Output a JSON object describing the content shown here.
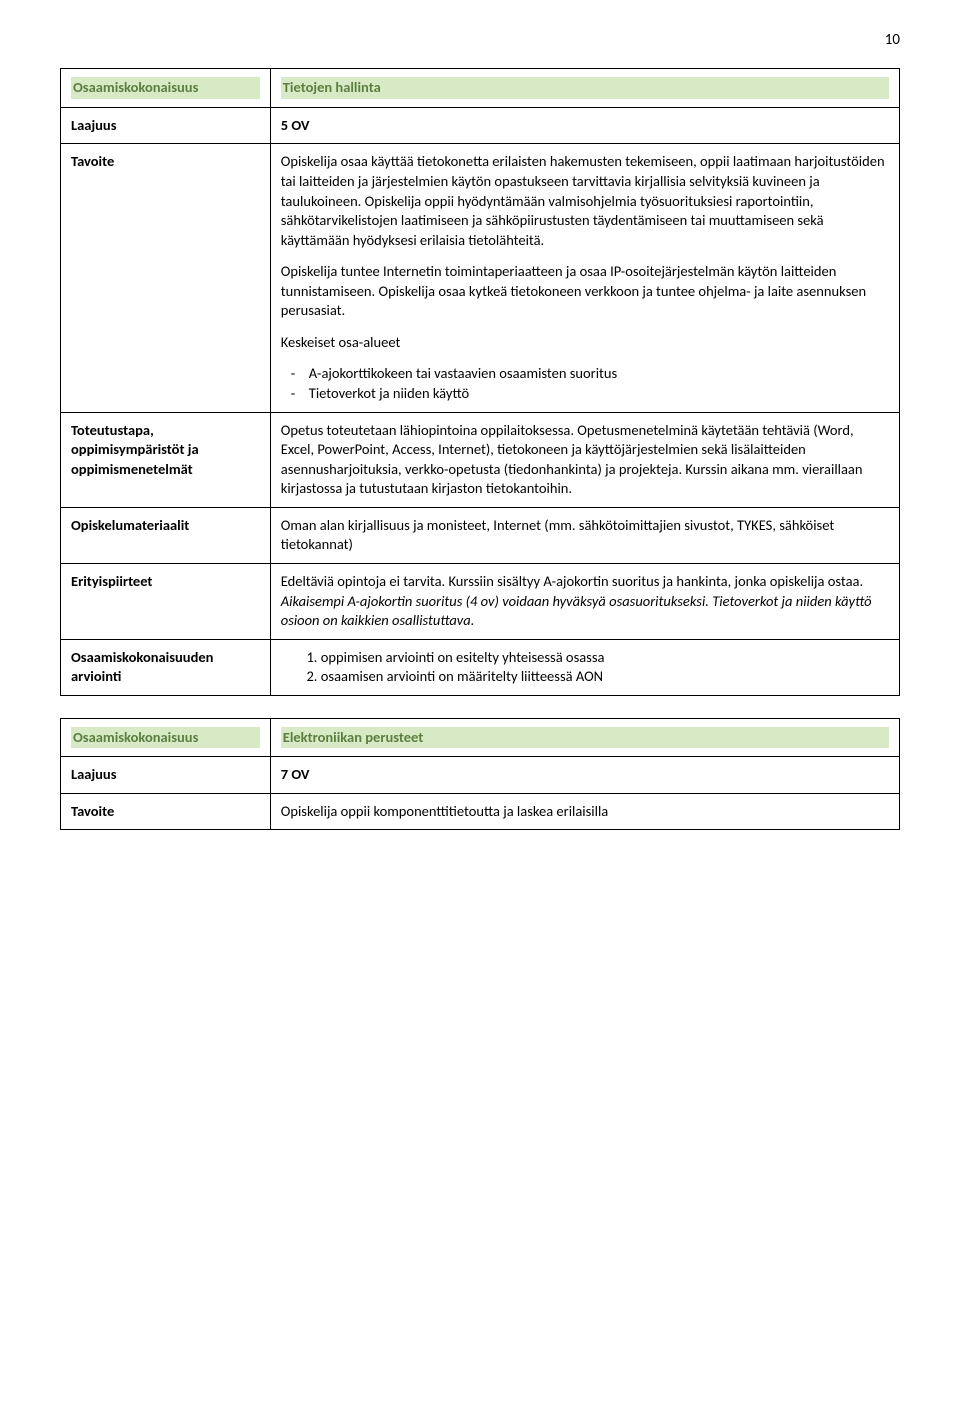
{
  "page_number": "10",
  "colors": {
    "highlight_bg": "#d8e9c6",
    "highlight_fg": "#5a7f3f",
    "border": "#000000",
    "text": "#000000",
    "bg": "#ffffff"
  },
  "course1": {
    "row_unit_label": "Osaamiskokonaisuus",
    "row_unit_value": "Tietojen hallinta",
    "row_scope_label": "Laajuus",
    "row_scope_value": "5 OV",
    "row_goal_label": "Tavoite",
    "goal_p1": "Opiskelija osaa käyttää tietokonetta erilaisten hakemusten tekemiseen, oppii laatimaan harjoitustöiden tai laitteiden ja järjestelmien käytön opastukseen tarvittavia kirjallisia selvityksiä kuvineen ja taulukoineen. Opiskelija oppii hyödyntämään valmisohjelmia työsuorituksiesi raportointiin, sähkötarvikelistojen laatimiseen ja sähköpiirustusten täydentämiseen tai muuttamiseen sekä käyttämään hyödyksesi erilaisia tietolähteitä.",
    "goal_p2": "Opiskelija tuntee Internetin toimintaperiaatteen ja osaa IP-osoitejärjestelmän käytön laitteiden tunnistamiseen. Opiskelija osaa kytkeä tietokoneen verkkoon ja tuntee ohjelma- ja laite asennuksen perusasiat.",
    "goal_p3": "Keskeiset osa-alueet",
    "goal_bullets": [
      "A-ajokorttikokeen tai vastaavien osaamisten suoritus",
      "Tietoverkot ja niiden käyttö"
    ],
    "row_impl_label": "Toteutustapa, oppimisympäristöt ja oppimismenetelmät",
    "row_impl_value": "Opetus toteutetaan lähiopintoina oppilaitoksessa. Opetusmenetelminä käytetään  tehtäviä (Word, Excel, PowerPoint, Access, Internet), tietokoneen ja käyttöjärjestelmien sekä lisälaitteiden asennusharjoituksia, verkko-opetusta (tiedonhankinta) ja projekteja. Kurssin aikana mm. vieraillaan kirjastossa ja tutustutaan kirjaston tietokantoihin.",
    "row_materials_label": "Opiskelumateriaalit",
    "row_materials_value": "Oman alan kirjallisuus ja monisteet, Internet (mm. sähkötoimittajien sivustot, TYKES, sähköiset tietokannat)",
    "row_special_label": "Erityispiirteet",
    "row_special_pre": "Edeltäviä opintoja ei tarvita. Kurssiin sisältyy A-ajokortin suoritus ja hankinta, jonka opiskelija ostaa. ",
    "row_special_italic": "Aikaisempi A-ajokortin suoritus (4 ov) voidaan hyväksyä osasuoritukseksi. Tietoverkot ja niiden käyttö osioon on kaikkien osallistuttava.",
    "row_assess_label": "Osaamiskokonaisuuden arviointi",
    "assess_items": [
      "oppimisen arviointi on esitelty yhteisessä osassa",
      "osaamisen arviointi on määritelty liitteessä AON"
    ]
  },
  "course2": {
    "row_unit_label": "Osaamiskokonaisuus",
    "row_unit_value": "Elektroniikan perusteet",
    "row_scope_label": "Laajuus",
    "row_scope_value": "7 OV",
    "row_goal_label": "Tavoite",
    "row_goal_value": "Opiskelija oppii komponenttitietoutta ja laskea erilaisilla"
  }
}
